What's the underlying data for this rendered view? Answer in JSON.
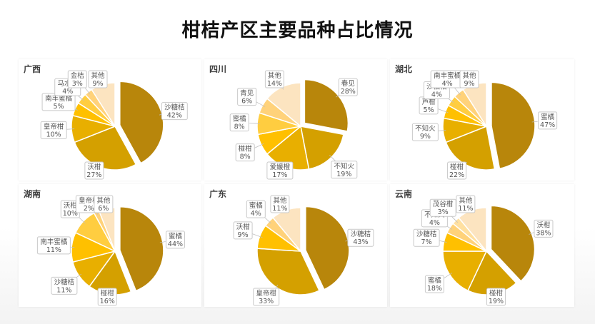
{
  "page": {
    "title": "柑桔产区主要品种占比情况"
  },
  "chart_data": [
    {
      "type": "pie",
      "title": "广西",
      "slices": [
        {
          "name": "沙糖桔",
          "value": 42,
          "color": "#B8860B"
        },
        {
          "name": "沃柑",
          "value": 27,
          "color": "#D4A000"
        },
        {
          "name": "皇帝柑",
          "value": 10,
          "color": "#E8AF00"
        },
        {
          "name": "南丰蜜橘",
          "value": 5,
          "color": "#FFC000"
        },
        {
          "name": "马水桔",
          "value": 4,
          "color": "#FFCD40"
        },
        {
          "name": "金桔",
          "value": 3,
          "color": "#FFD27A"
        },
        {
          "name": "其他",
          "value": 9,
          "color": "#FCE4C0"
        }
      ]
    },
    {
      "type": "pie",
      "title": "四川",
      "slices": [
        {
          "name": "春见",
          "value": 28,
          "color": "#B8860B"
        },
        {
          "name": "不知火",
          "value": 19,
          "color": "#D4A000"
        },
        {
          "name": "爱媛橙",
          "value": 17,
          "color": "#E8AF00"
        },
        {
          "name": "椪柑",
          "value": 8,
          "color": "#FFC000"
        },
        {
          "name": "蜜橘",
          "value": 8,
          "color": "#FFCD40"
        },
        {
          "name": "青见",
          "value": 6,
          "color": "#FFD27A"
        },
        {
          "name": "其他",
          "value": 14,
          "color": "#FCE4C0"
        }
      ]
    },
    {
      "type": "pie",
      "title": "湖北",
      "slices": [
        {
          "name": "蜜橘",
          "value": 47,
          "color": "#B8860B"
        },
        {
          "name": "椪柑",
          "value": 22,
          "color": "#D4A000"
        },
        {
          "name": "不知火",
          "value": 9,
          "color": "#E8AF00"
        },
        {
          "name": "芦柑",
          "value": 5,
          "color": "#FFC000"
        },
        {
          "name": "沙糖桔",
          "value": 4,
          "color": "#FFCD40"
        },
        {
          "name": "南丰蜜橘",
          "value": 4,
          "color": "#FFD27A"
        },
        {
          "name": "其他",
          "value": 9,
          "color": "#FCE4C0"
        }
      ]
    },
    {
      "type": "pie",
      "title": "湖南",
      "slices": [
        {
          "name": "蜜橘",
          "value": 44,
          "color": "#B8860B"
        },
        {
          "name": "椪柑",
          "value": 16,
          "color": "#D4A000"
        },
        {
          "name": "沙糖桔",
          "value": 11,
          "color": "#E8AF00"
        },
        {
          "name": "南丰蜜橘",
          "value": 11,
          "color": "#FFC000"
        },
        {
          "name": "沃柑",
          "value": 10,
          "color": "#FFCD40"
        },
        {
          "name": "皇帝柑",
          "value": 2,
          "color": "#FFD27A"
        },
        {
          "name": "其他",
          "value": 6,
          "color": "#FCE4C0"
        }
      ]
    },
    {
      "type": "pie",
      "title": "广东",
      "slices": [
        {
          "name": "沙糖桔",
          "value": 43,
          "color": "#B8860B"
        },
        {
          "name": "皇帝柑",
          "value": 33,
          "color": "#D4A000"
        },
        {
          "name": "沃柑",
          "value": 9,
          "color": "#FFC000"
        },
        {
          "name": "蜜橘",
          "value": 4,
          "color": "#FFD27A"
        },
        {
          "name": "其他",
          "value": 11,
          "color": "#FCE4C0"
        }
      ]
    },
    {
      "type": "pie",
      "title": "云南",
      "slices": [
        {
          "name": "沃柑",
          "value": 38,
          "color": "#B8860B"
        },
        {
          "name": "椪柑",
          "value": 19,
          "color": "#D4A000"
        },
        {
          "name": "蜜橘",
          "value": 18,
          "color": "#E8AF00"
        },
        {
          "name": "沙糖桔",
          "value": 7,
          "color": "#FFC000"
        },
        {
          "name": "不知火",
          "value": 4,
          "color": "#FFD27A"
        },
        {
          "name": "茂谷柑",
          "value": 3,
          "color": "#FFE0A0"
        },
        {
          "name": "其他",
          "value": 11,
          "color": "#FCE4C0"
        }
      ]
    }
  ]
}
